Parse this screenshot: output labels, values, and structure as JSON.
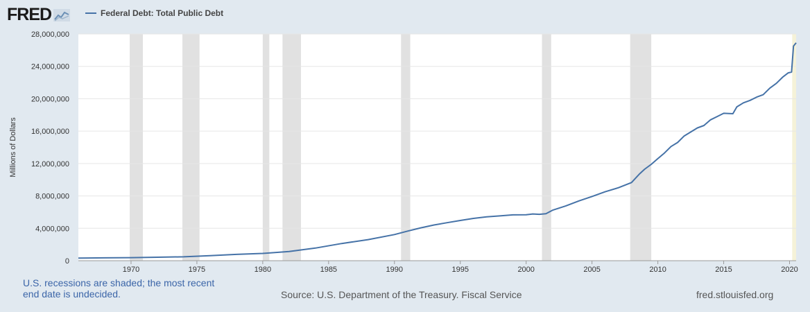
{
  "brand": {
    "logo_text": "FRED",
    "logo_icon": "chart-line-icon"
  },
  "colors": {
    "line": "#4572a7",
    "recession": "#e1e1e1",
    "undecided": "#f5f2d8",
    "background": "#e1e9f0",
    "plot_bg": "#ffffff"
  },
  "legend": {
    "label": "Federal Debt: Total Public Debt"
  },
  "footer": {
    "recession_note": "U.S. recessions are shaded; the most recent end date is undecided.",
    "source": "Source: U.S. Department of the Treasury. Fiscal Service",
    "site": "fred.stlouisfed.org"
  },
  "chart_data": {
    "type": "line",
    "title": "",
    "xlabel": "",
    "ylabel": "Millions of Dollars",
    "xlim": [
      1966,
      2020.5
    ],
    "ylim": [
      0,
      28000000
    ],
    "grid": true,
    "legend_placement": "top-left",
    "x_ticks": [
      1970,
      1975,
      1980,
      1985,
      1990,
      1995,
      2000,
      2005,
      2010,
      2015,
      2020
    ],
    "y_ticks": [
      {
        "value": 0,
        "label": "0"
      },
      {
        "value": 4000000,
        "label": "4,000,000"
      },
      {
        "value": 8000000,
        "label": "8,000,000"
      },
      {
        "value": 12000000,
        "label": "12,000,000"
      },
      {
        "value": 16000000,
        "label": "16,000,000"
      },
      {
        "value": 20000000,
        "label": "20,000,000"
      },
      {
        "value": 24000000,
        "label": "24,000,000"
      },
      {
        "value": 28000000,
        "label": "28,000,000"
      }
    ],
    "recessions": [
      [
        1969.9,
        1970.9
      ],
      [
        1973.9,
        1975.2
      ],
      [
        1980.0,
        1980.5
      ],
      [
        1981.5,
        1982.9
      ],
      [
        1990.5,
        1991.2
      ],
      [
        2001.2,
        2001.9
      ],
      [
        2007.9,
        2009.5
      ]
    ],
    "undecided_recession": [
      2020.2,
      2020.5
    ],
    "series": [
      {
        "name": "Federal Debt: Total Public Debt",
        "x": [
          1966,
          1968,
          1970,
          1972,
          1974,
          1976,
          1978,
          1980,
          1982,
          1984,
          1986,
          1988,
          1990,
          1991,
          1992,
          1993,
          1994,
          1995,
          1996,
          1997,
          1998,
          1999,
          2000,
          2000.5,
          2001,
          2001.5,
          2002,
          2003,
          2004,
          2005,
          2006,
          2007,
          2008,
          2008.6,
          2009,
          2009.5,
          2010,
          2010.5,
          2011,
          2011.5,
          2012,
          2013,
          2013.5,
          2014,
          2014.5,
          2015,
          2015.7,
          2016,
          2016.5,
          2017,
          2017.5,
          2018,
          2018.5,
          2019,
          2019.5,
          2019.9,
          2020.15,
          2020.3,
          2020.5
        ],
        "values": [
          320000,
          350000,
          380000,
          430000,
          480000,
          620000,
          780000,
          900000,
          1140000,
          1560000,
          2120000,
          2600000,
          3230000,
          3660000,
          4060000,
          4410000,
          4690000,
          4970000,
          5220000,
          5410000,
          5530000,
          5660000,
          5670000,
          5770000,
          5730000,
          5800000,
          6230000,
          6760000,
          7380000,
          7930000,
          8510000,
          9010000,
          9650000,
          10700000,
          11300000,
          11900000,
          12600000,
          13300000,
          14100000,
          14600000,
          15400000,
          16400000,
          16700000,
          17400000,
          17800000,
          18200000,
          18150000,
          19000000,
          19500000,
          19800000,
          20200000,
          20500000,
          21300000,
          21900000,
          22700000,
          23200000,
          23300000,
          26500000,
          26900000
        ]
      }
    ]
  }
}
